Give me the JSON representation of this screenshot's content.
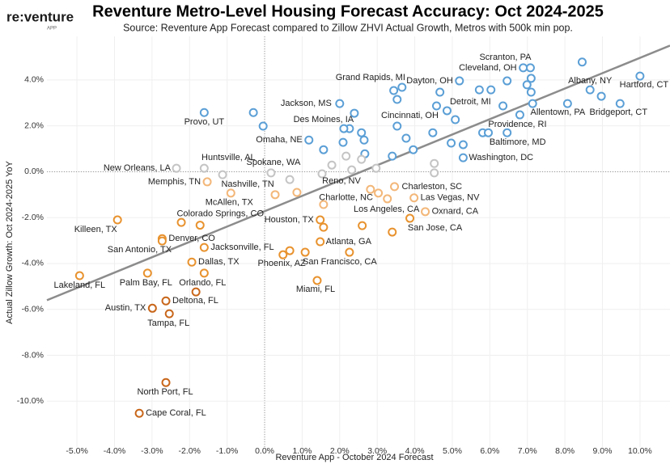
{
  "chart_data": {
    "type": "scatter",
    "title": "Reventure Metro-Level Housing Forecast Accuracy: Oct 2024-2025",
    "subtitle": "Source: Reventure App Forecast compared to Zillow ZHVI Actual Growth, Metros with 500k min pop.",
    "logo": "re:venture",
    "logo_sub": "APP",
    "x_label": "Reventure App - October 2024 Forecast",
    "y_label": "Actual Zillow Growth: Oct 2024-2025 YoY",
    "xlim": [
      -5.8,
      10.8
    ],
    "ylim": [
      -12,
      5.9
    ],
    "xticks": [
      {
        "value": -5,
        "label": "-5.0%"
      },
      {
        "value": -4,
        "label": "-4.0%"
      },
      {
        "value": -3,
        "label": "-3.0%"
      },
      {
        "value": -2,
        "label": "-2.0%"
      },
      {
        "value": -1,
        "label": "-1.0%"
      },
      {
        "value": 0,
        "label": "0.0%"
      },
      {
        "value": 1,
        "label": "1.0%"
      },
      {
        "value": 2,
        "label": "2.0%"
      },
      {
        "value": 3,
        "label": "3.0%"
      },
      {
        "value": 4,
        "label": "4.0%"
      },
      {
        "value": 5,
        "label": "5.0%"
      },
      {
        "value": 6,
        "label": "6.0%"
      },
      {
        "value": 7,
        "label": "7.0%"
      },
      {
        "value": 8,
        "label": "8.0%"
      },
      {
        "value": 9,
        "label": "9.0%"
      },
      {
        "value": 10,
        "label": "10.0%"
      }
    ],
    "yticks": [
      {
        "value": -10,
        "label": "-10.0%"
      },
      {
        "value": -8,
        "label": "-8.0%"
      },
      {
        "value": -6,
        "label": "-6.0%"
      },
      {
        "value": -4,
        "label": "-4.0%"
      },
      {
        "value": -2,
        "label": "-2.0%"
      },
      {
        "value": 0,
        "label": "0.0%"
      },
      {
        "value": 2,
        "label": "2.0%"
      },
      {
        "value": 4,
        "label": "4.0%"
      }
    ],
    "grid": true,
    "zero_lines": true,
    "trendline": {
      "color": "#8c8c8c",
      "x": [
        -5.8,
        10.8
      ],
      "y": [
        -5.6,
        5.5
      ]
    },
    "series": [
      {
        "color": "#5b9fd6",
        "x": [
          7.08,
          6.89,
          8.67,
          10.0,
          3.66,
          5.19,
          5.72,
          2.0,
          4.58,
          8.07,
          9.47,
          -1.61,
          2.26,
          6.8,
          1.18,
          6.46,
          5.29,
          8.46,
          6.46,
          6.03,
          7.1,
          6.99,
          7.1,
          6.35,
          7.14,
          4.67,
          3.53,
          3.44,
          -0.3,
          -0.04,
          2.39,
          3.53,
          2.58,
          2.11,
          2.09,
          1.57,
          2.65,
          2.67,
          3.4,
          3.96,
          3.77,
          4.48,
          4.86,
          5.08,
          4.97,
          5.29,
          5.81,
          5.96,
          8.97
        ],
        "values": [
          4.53,
          4.53,
          3.57,
          4.17,
          3.68,
          3.96,
          3.57,
          2.97,
          2.87,
          2.97,
          2.97,
          2.58,
          1.88,
          2.48,
          1.38,
          1.7,
          0.61,
          4.78,
          3.96,
          3.57,
          4.07,
          3.79,
          3.47,
          2.87,
          2.97,
          3.47,
          3.15,
          3.54,
          2.58,
          1.99,
          2.55,
          1.99,
          1.7,
          1.88,
          1.28,
          0.96,
          1.38,
          0.78,
          0.68,
          0.96,
          1.46,
          1.7,
          2.66,
          2.27,
          1.25,
          1.18,
          1.7,
          1.7,
          3.29
        ],
        "labels": [
          "Scranton, PA",
          "Cleveland, OH",
          "Albany, NY",
          "Hartford, CT",
          "Grand Rapids, MI",
          "Dayton, OH",
          "Detroit, MI",
          "Jackson, MS",
          "Cincinnati, OH",
          "Allentown, PA",
          "Bridgeport, CT",
          "Provo, UT",
          "Des Moines, IA",
          "Providence, RI",
          "Omaha, NE",
          "Baltimore, MD",
          "Washington, DC",
          null,
          null,
          null,
          null,
          null,
          null,
          null,
          null,
          null,
          null,
          null,
          null,
          null,
          null,
          null,
          null,
          null,
          null,
          null,
          null,
          null,
          null,
          null,
          null,
          null,
          null,
          null,
          null,
          null,
          null,
          null,
          null
        ]
      },
      {
        "color": "#c4c4c4",
        "x": [
          -1.61,
          -2.35,
          0.17,
          -1.12,
          1.53,
          2.17,
          2.32,
          2.58,
          2.97,
          1.79,
          4.52,
          4.52,
          0.67
        ],
        "values": [
          0.15,
          0.15,
          -0.05,
          -0.13,
          -0.09,
          0.68,
          0.08,
          0.54,
          0.15,
          0.29,
          0.36,
          -0.05,
          -0.34
        ],
        "labels": [
          "Huntsville, AL",
          "New Orleans, LA",
          "Spokane, WA",
          "Nashville, TN",
          "Reno, NV",
          null,
          null,
          null,
          null,
          null,
          null,
          null,
          null
        ]
      },
      {
        "color": "#f3b779",
        "x": [
          -1.53,
          3.46,
          3.03,
          -0.9,
          3.98,
          4.28,
          0.28,
          0.86,
          2.82,
          3.27,
          1.57
        ],
        "values": [
          -0.44,
          -0.65,
          -0.93,
          -0.93,
          -1.14,
          -1.74,
          -1.0,
          -0.9,
          -0.77,
          -1.18,
          -1.43
        ],
        "labels": [
          "Memphis, TN",
          "Charleston, SC",
          "Charlotte, NC",
          "McAllen, TX",
          "Las Vegas, NV",
          "Oxnard, CA",
          null,
          null,
          null,
          null,
          null
        ]
      },
      {
        "color": "#e8922e",
        "x": [
          -1.72,
          2.6,
          -3.92,
          1.48,
          3.87,
          -2.73,
          -2.73,
          -1.61,
          1.48,
          -1.94,
          0.67,
          2.26,
          -4.93,
          -3.12,
          -1.61,
          1.4,
          -2.22,
          1.57,
          0.49,
          3.4,
          1.08
        ],
        "values": [
          -2.33,
          -2.35,
          -2.1,
          -2.1,
          -2.03,
          -2.92,
          -3.02,
          -3.3,
          -3.05,
          -3.94,
          -3.44,
          -3.51,
          -4.53,
          -4.42,
          -4.42,
          -4.74,
          -2.21,
          -2.42,
          -3.62,
          -2.63,
          -3.51
        ],
        "labels": [
          "Colorado Springs, CO",
          "Los Angeles, CA",
          "Killeen, TX",
          "Houston, TX",
          "San Jose, CA",
          "Denver, CO",
          "San Antonio, TX",
          "Jacksonville, FL",
          "Atlanta, GA",
          "Dallas, TX",
          "Phoenix, AZ",
          "San Francisco, CA",
          "Lakeland, FL",
          "Palm Bay, FL",
          "Orlando, FL",
          "Miami, FL",
          null,
          null,
          null,
          null,
          null
        ]
      },
      {
        "color": "#c8661a",
        "x": [
          -2.63,
          -2.99,
          -2.54,
          -2.63,
          -3.34,
          -1.83
        ],
        "values": [
          -5.63,
          -5.95,
          -6.19,
          -9.19,
          -10.53,
          -5.24
        ],
        "labels": [
          "Deltona, FL",
          "Austin, TX",
          "Tampa, FL",
          "North Port, FL",
          "Cape Coral, FL",
          null
        ]
      }
    ]
  }
}
